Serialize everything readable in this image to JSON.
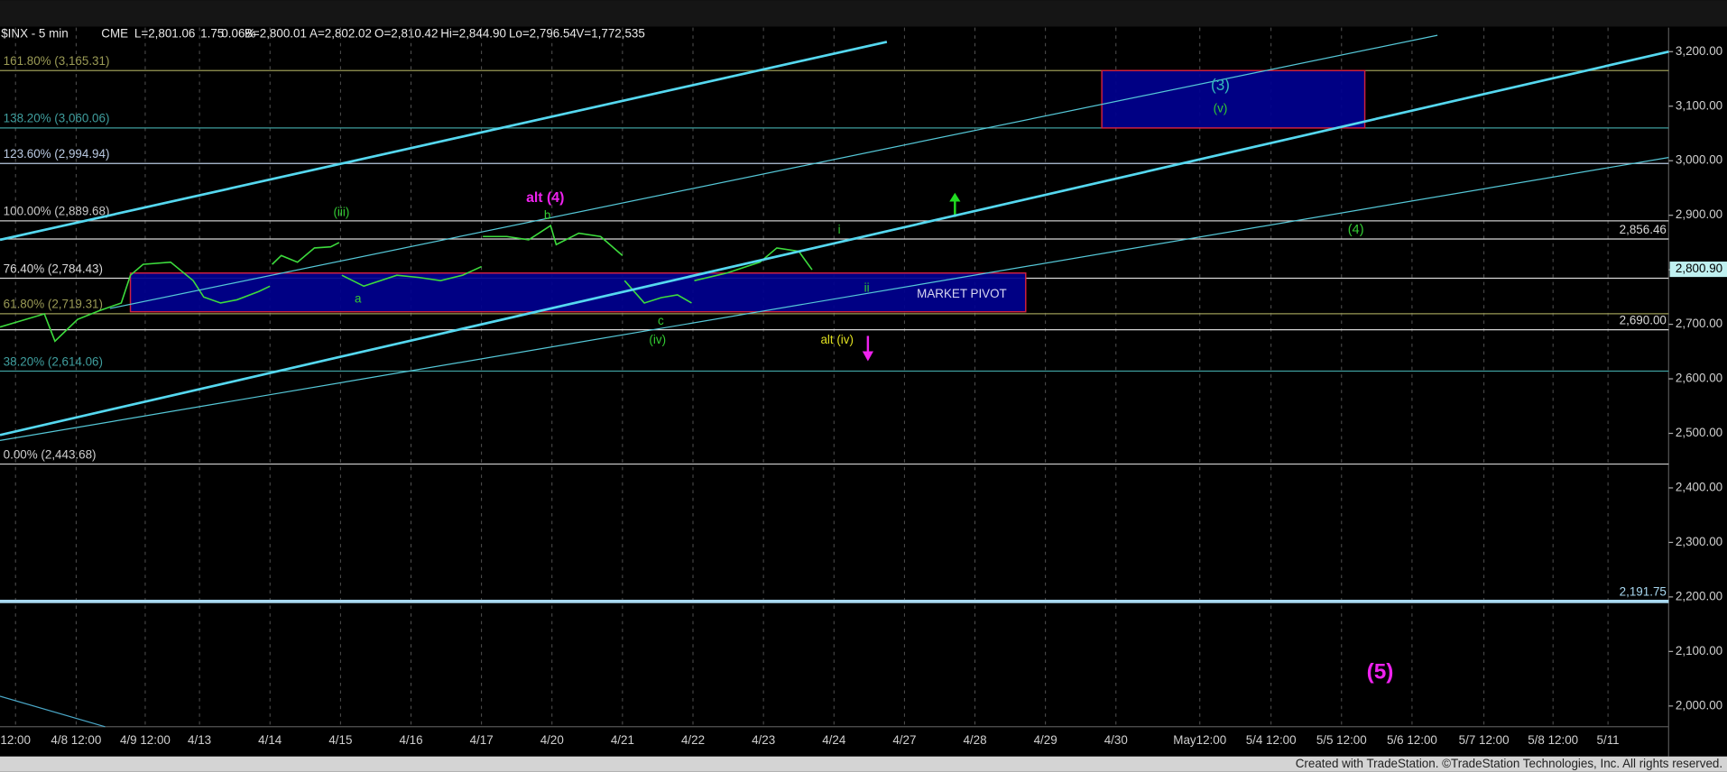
{
  "header": {
    "items": [
      "$INX - 5 min",
      "CME",
      "L=2,801.06",
      "1.75",
      "0.06%",
      "B=2,800.01",
      "A=2,802.02",
      "O=2,810.42",
      "Hi=2,844.90",
      "Lo=2,796.54",
      "V=1,772,535"
    ]
  },
  "footer": "Created with TradeStation. ©TradeStation Technologies, Inc. All rights reserved.",
  "chart_data": {
    "type": "line",
    "color": "#3ddc3d",
    "x": [
      0.17,
      0.8,
      0.95,
      1.27,
      1.58,
      1.89,
      2.02,
      2.2,
      2.59,
      2.91,
      3.06,
      3.3,
      3.53,
      3.84,
      4.0,
      null,
      4.03,
      4.16,
      4.39,
      4.63,
      4.86,
      4.98,
      null,
      5.02,
      5.33,
      5.8,
      6.11,
      6.42,
      6.73,
      7.0,
      null,
      7.02,
      7.36,
      7.67,
      7.98,
      8.06,
      8.38,
      8.69,
      9.0,
      null,
      9.03,
      9.31,
      9.55,
      9.78,
      9.98,
      null,
      10.02,
      10.48,
      10.95,
      11.19,
      11.5,
      11.69
    ],
    "values": [
      2695,
      2719,
      2669,
      2709,
      2725,
      2739,
      2790,
      2810,
      2814,
      2780,
      2750,
      2739,
      2745,
      2760,
      2770,
      null,
      2810,
      2826,
      2814,
      2840,
      2842,
      2850,
      null,
      2790,
      2770,
      2790,
      2786,
      2780,
      2790,
      2806,
      null,
      2861,
      2861,
      2855,
      2881,
      2846,
      2867,
      2861,
      2826,
      null,
      2780,
      2739,
      2749,
      2754,
      2739,
      null,
      2780,
      2794,
      2814,
      2840,
      2834,
      2800
    ],
    "xlim": [
      0.17,
      23.84
    ],
    "xticks": [
      {
        "value": 0.39,
        "label": "12:00"
      },
      {
        "value": 1.25,
        "label": "4/8 12:00"
      },
      {
        "value": 2.23,
        "label": "4/9 12:00"
      },
      {
        "value": 3,
        "label": "4/13"
      },
      {
        "value": 4,
        "label": "4/14"
      },
      {
        "value": 5,
        "label": "4/15"
      },
      {
        "value": 6,
        "label": "4/16"
      },
      {
        "value": 7,
        "label": "4/17"
      },
      {
        "value": 8,
        "label": "4/20"
      },
      {
        "value": 9,
        "label": "4/21"
      },
      {
        "value": 10,
        "label": "4/22"
      },
      {
        "value": 11,
        "label": "4/23"
      },
      {
        "value": 12,
        "label": "4/24"
      },
      {
        "value": 13,
        "label": "4/27"
      },
      {
        "value": 14,
        "label": "4/28"
      },
      {
        "value": 15,
        "label": "4/29"
      },
      {
        "value": 16,
        "label": "4/30"
      },
      {
        "value": 17.19,
        "label": "May12:00"
      },
      {
        "value": 18.2,
        "label": "5/4 12:00"
      },
      {
        "value": 19.2,
        "label": "5/5 12:00"
      },
      {
        "value": 20.2,
        "label": "5/6 12:00"
      },
      {
        "value": 21.22,
        "label": "5/7 12:00"
      },
      {
        "value": 22.2,
        "label": "5/8 12:00"
      },
      {
        "value": 22.98,
        "label": "5/11"
      }
    ],
    "ylim": [
      1962,
      3244
    ],
    "yticks": [
      {
        "value": 2000,
        "label": "2,000.00"
      },
      {
        "value": 2100,
        "label": "2,100.00"
      },
      {
        "value": 2200,
        "label": "2,200.00"
      },
      {
        "value": 2300,
        "label": "2,300.00"
      },
      {
        "value": 2400,
        "label": "2,400.00"
      },
      {
        "value": 2500,
        "label": "2,500.00"
      },
      {
        "value": 2600,
        "label": "2,600.00"
      },
      {
        "value": 2700,
        "label": "2,700.00"
      },
      {
        "value": 2800,
        "label": "2,800.00"
      },
      {
        "value": 2900,
        "label": "2,900.00"
      },
      {
        "value": 3000,
        "label": "3,000.00"
      },
      {
        "value": 3100,
        "label": "3,100.00"
      },
      {
        "value": 3200,
        "label": "3,200.00"
      }
    ],
    "y_axis_side": "right",
    "fib_levels": [
      {
        "label": "161.80% (3,165.31)",
        "value": 3165.31,
        "color": "#9a9a55"
      },
      {
        "label": "138.20% (3,060.06)",
        "value": 3060.06,
        "color": "#3f9e9e"
      },
      {
        "label": "123.60% (2,994.94)",
        "value": 2994.94,
        "color": "#b8c8e0"
      },
      {
        "label": "100.00% (2,889.68)",
        "value": 2889.68,
        "color": "#c8c8c8"
      },
      {
        "label": "76.40% (2,784.43)",
        "value": 2784.43,
        "color": "#d8d8d8"
      },
      {
        "label": "61.80% (2,719.31)",
        "value": 2719.31,
        "color": "#9a9a55"
      },
      {
        "label": "38.20% (2,614.06)",
        "value": 2614.06,
        "color": "#3f9e9e"
      },
      {
        "label": "0.00% (2,443.68)",
        "value": 2443.68,
        "color": "#d0d0d0"
      }
    ],
    "price_levels": [
      {
        "value": 2856.46,
        "label": "2,856.46",
        "color": "#d8d8d8"
      },
      {
        "value": 2690,
        "label": "2,690.00",
        "color": "#d8d8d8"
      },
      {
        "value": 2191.75,
        "label": "2,191.75",
        "color": "#a8d8f0"
      }
    ],
    "last_price": {
      "value": 2800.9,
      "label": "2,800.90"
    },
    "trendlines": [
      {
        "x": [
          0.17,
          12.75
        ],
        "values": [
          2855,
          3218
        ],
        "color": "#55d8f0",
        "width": 2.2
      },
      {
        "x": [
          1.73,
          20.56
        ],
        "values": [
          2729,
          3230
        ],
        "color": "#55c8d8",
        "width": 1
      },
      {
        "x": [
          0.17,
          23.84
        ],
        "values": [
          2497,
          3200
        ],
        "color": "#55d8f0",
        "width": 2.2
      },
      {
        "x": [
          0.17,
          23.84
        ],
        "values": [
          2487,
          3006
        ],
        "color": "#55c8d8",
        "width": 1
      },
      {
        "x": [
          0.17,
          1.66
        ],
        "values": [
          2018,
          1962
        ],
        "color": "#4aa8c8",
        "width": 1
      }
    ],
    "zones": [
      {
        "x": [
          2.02,
          14.72
        ],
        "values": [
          2794,
          2723
        ],
        "label": "MARKET PIVOT"
      },
      {
        "x": [
          15.8,
          19.53
        ],
        "values": [
          3165.31,
          3060.06
        ]
      }
    ],
    "annotations": [
      {
        "text": "(iii)",
        "color": "#33cc33"
      },
      {
        "text": "alt (4)",
        "color": "#ee22ee"
      },
      {
        "text": "b",
        "color": "#33cc33"
      },
      {
        "text": "a",
        "color": "#33cc33"
      },
      {
        "text": "c",
        "color": "#33cc33"
      },
      {
        "text": "(iv)",
        "color": "#33cc33"
      },
      {
        "text": "i",
        "color": "#33cc33"
      },
      {
        "text": "ii",
        "color": "#33cc33"
      },
      {
        "text": "alt (iv)",
        "color": "#e0e020"
      },
      {
        "text": "(3)",
        "color": "#33bbbb"
      },
      {
        "text": "(v)",
        "color": "#33cc33"
      },
      {
        "text": "(4)",
        "color": "#33cc33"
      },
      {
        "text": "(5)",
        "color": "#ee22ee"
      }
    ]
  }
}
